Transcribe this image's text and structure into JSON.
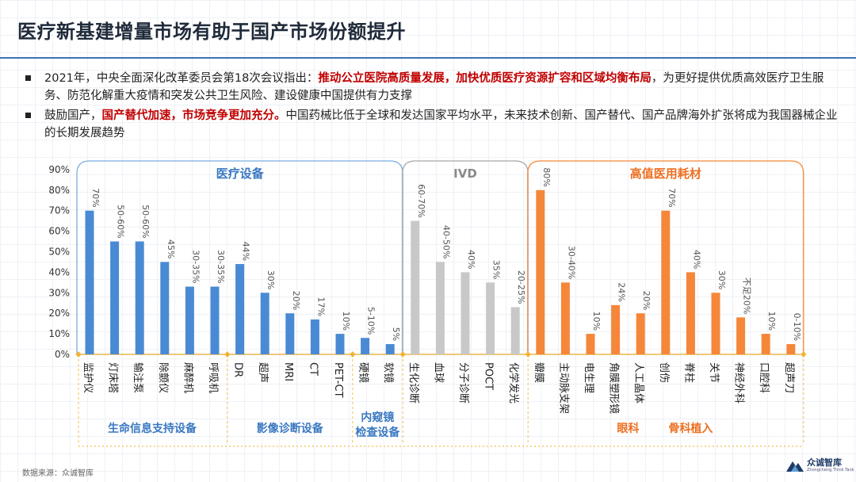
{
  "title": "医疗新基建增量市场有助于国产市场份额提升",
  "bullets": [
    {
      "pre": "2021年，中央全面深化改革委员会第18次会议指出：",
      "highlight": "推动公立医院高质量发展，加快优质医疗资源扩容和区域均衡布局",
      "post": "，为更好提供优质高效医疗卫生服务、防范化解重大疫情和突发公共卫生风险、建设健康中国提供有力支撑"
    },
    {
      "pre": "鼓励国产，",
      "highlight": "国产替代加速，市场竞争更加充分。",
      "post": "中国药械比低于全球和发达国家平均水平，未来技术创新、国产替代、国产品牌海外扩张将成为我国器械企业的长期发展趋势"
    }
  ],
  "colors": {
    "blue": "#4a8ad4",
    "gray": "#c8c8c8",
    "orange": "#f5873a",
    "group_label_blue": "#3a78c2",
    "group_label_orange": "#ec6f20",
    "divider": "#f2c14e",
    "title_rule": "#3b73b9",
    "highlight": "#c00000"
  },
  "chart_data": {
    "type": "bar",
    "ylim": [
      0,
      90
    ],
    "yticks": [
      "0%",
      "10%",
      "20%",
      "30%",
      "40%",
      "50%",
      "60%",
      "70%",
      "80%",
      "90%"
    ],
    "groups": [
      {
        "name": "医疗设备",
        "color": "blue",
        "start": 0,
        "end": 12
      },
      {
        "name": "IVD",
        "color": "gray",
        "start": 13,
        "end": 17
      },
      {
        "name": "高值医用耗材",
        "color": "orange",
        "start": 18,
        "end": 28
      }
    ],
    "subgroups": [
      {
        "name": "生命信息支持设备",
        "start": 0,
        "end": 5,
        "color": "group_label_blue"
      },
      {
        "name": "影像诊断设备",
        "start": 6,
        "end": 10,
        "color": "group_label_blue"
      },
      {
        "name": "内窥镜\n检查设备",
        "start": 11,
        "end": 12,
        "color": "group_label_blue"
      },
      {
        "name": "眼科",
        "start": 21,
        "end": 22,
        "color": "group_label_orange"
      },
      {
        "name": "骨科植入",
        "start": 23,
        "end": 25,
        "color": "group_label_orange"
      }
    ],
    "bars": [
      {
        "category": "监护仪",
        "value": 70,
        "label": "70%",
        "color": "blue"
      },
      {
        "category": "灯床塔",
        "value": 55,
        "label": "50-60%",
        "color": "blue"
      },
      {
        "category": "输注泵",
        "value": 55,
        "label": "50-60%",
        "color": "blue"
      },
      {
        "category": "除颤仪",
        "value": 45,
        "label": "45%",
        "color": "blue"
      },
      {
        "category": "麻醉机",
        "value": 33,
        "label": "30-35%",
        "color": "blue"
      },
      {
        "category": "呼吸机",
        "value": 33,
        "label": "30-35%",
        "color": "blue"
      },
      {
        "category": "DR",
        "value": 44,
        "label": "44%",
        "color": "blue"
      },
      {
        "category": "超声",
        "value": 30,
        "label": "30%",
        "color": "blue"
      },
      {
        "category": "MRI",
        "value": 20,
        "label": "20%",
        "color": "blue"
      },
      {
        "category": "CT",
        "value": 17,
        "label": "17%",
        "color": "blue"
      },
      {
        "category": "PET-CT",
        "value": 10,
        "label": "10%",
        "color": "blue"
      },
      {
        "category": "硬镜",
        "value": 8,
        "label": "5-10%",
        "color": "blue"
      },
      {
        "category": "软镜",
        "value": 5,
        "label": "5%",
        "color": "blue"
      },
      {
        "category": "生化诊断",
        "value": 65,
        "label": "60-70%",
        "color": "gray"
      },
      {
        "category": "血球",
        "value": 45,
        "label": "40-50%",
        "color": "gray"
      },
      {
        "category": "分子诊断",
        "value": 40,
        "label": "40%",
        "color": "gray"
      },
      {
        "category": "POCT",
        "value": 35,
        "label": "35%",
        "color": "gray"
      },
      {
        "category": "化学发光",
        "value": 23,
        "label": "20-25%",
        "color": "gray"
      },
      {
        "category": "瓣膜",
        "value": 80,
        "label": "80%",
        "color": "orange"
      },
      {
        "category": "主动脉支架",
        "value": 35,
        "label": "30-40%",
        "color": "orange"
      },
      {
        "category": "电生理",
        "value": 10,
        "label": "10%",
        "color": "orange"
      },
      {
        "category": "角膜塑形镜",
        "value": 24,
        "label": "24%",
        "color": "orange"
      },
      {
        "category": "人工晶体",
        "value": 20,
        "label": "20%",
        "color": "orange"
      },
      {
        "category": "创伤",
        "value": 70,
        "label": "70%",
        "color": "orange"
      },
      {
        "category": "脊柱",
        "value": 40,
        "label": "40%",
        "color": "orange"
      },
      {
        "category": "关节",
        "value": 30,
        "label": "30%",
        "color": "orange"
      },
      {
        "category": "神经外科",
        "value": 18,
        "label": "不足20%",
        "color": "orange"
      },
      {
        "category": "口腔科",
        "value": 10,
        "label": "10%",
        "color": "orange"
      },
      {
        "category": "超声刀",
        "value": 5,
        "label": "0-10%",
        "color": "orange"
      }
    ]
  },
  "footer": {
    "source": "数据来源：众诚智库",
    "logo_name": "众诚智库",
    "logo_en": "Zhongcheng Think Tank"
  }
}
